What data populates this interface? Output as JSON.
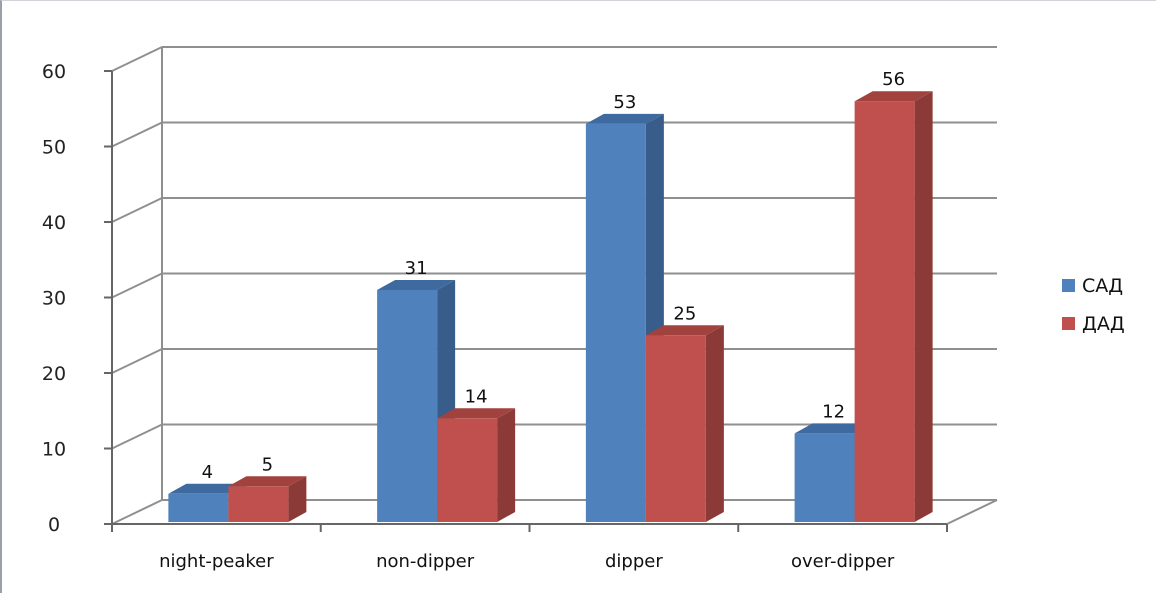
{
  "chart_data": {
    "type": "bar",
    "categories": [
      "night-peaker",
      "non-dipper",
      "dipper",
      "over-dipper"
    ],
    "series": [
      {
        "name": "САД",
        "values": [
          4,
          31,
          53,
          12
        ],
        "color": "#4f81bd",
        "side_color": "#385d8a",
        "top_color": "#3f6aa0"
      },
      {
        "name": "ДАД",
        "values": [
          5,
          14,
          25,
          56
        ],
        "color": "#c0504d",
        "side_color": "#8c3a38",
        "top_color": "#a2423f"
      }
    ],
    "y_ticks": [
      "0",
      "10",
      "20",
      "30",
      "40",
      "50",
      "60"
    ],
    "ylim": [
      0,
      60
    ],
    "grid": true,
    "legend_position": "right",
    "style": "3d-clustered-column"
  }
}
